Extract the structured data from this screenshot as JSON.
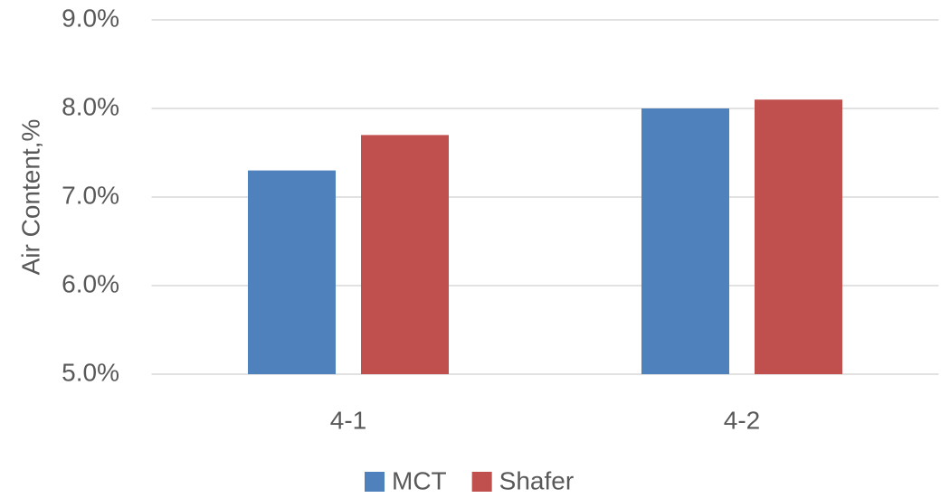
{
  "chart_data": {
    "type": "bar",
    "y_label": "Air Content,%",
    "categories": [
      "4-1",
      "4-2"
    ],
    "series": [
      {
        "name": "MCT",
        "color": "#4f81bd",
        "values": [
          7.3,
          8.0
        ]
      },
      {
        "name": "Shafer",
        "color": "#c0504d",
        "values": [
          7.7,
          8.1
        ]
      }
    ],
    "ylim": [
      5,
      9
    ],
    "yticks": [
      {
        "value": 5,
        "label": "5.0%"
      },
      {
        "value": 6,
        "label": "6.0%"
      },
      {
        "value": 7,
        "label": "7.0%"
      },
      {
        "value": 8,
        "label": "8.0%"
      },
      {
        "value": 9,
        "label": "9.0%"
      }
    ],
    "grid": true,
    "legend": "bottom"
  }
}
